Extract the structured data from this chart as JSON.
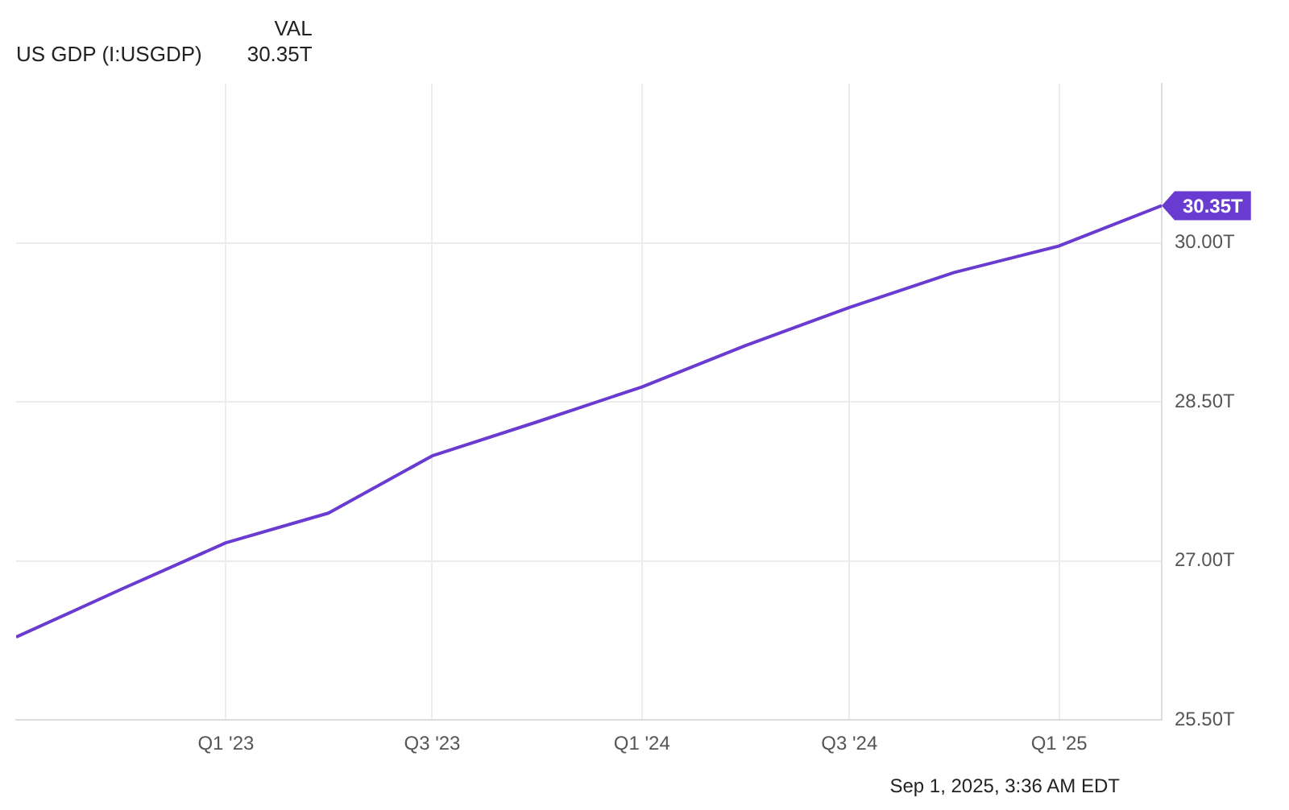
{
  "chart_data": {
    "type": "line",
    "legend_title": "VAL",
    "legend": "top left",
    "grid": true,
    "marker": "none",
    "line_style": "solid",
    "x": [
      "2022-07-01",
      "2022-10-01",
      "2023-01-01",
      "2023-04-01",
      "2023-07-01",
      "2023-10-01",
      "2024-01-01",
      "2024-04-01",
      "2024-07-01",
      "2024-10-01",
      "2025-01-01",
      "2025-04-01"
    ],
    "xlim": [
      "2022-07-01",
      "2025-04-01"
    ],
    "xticks": [
      {
        "value": "2023-01-01",
        "label": "Q1 '23"
      },
      {
        "value": "2023-07-01",
        "label": "Q3 '23"
      },
      {
        "value": "2024-01-01",
        "label": "Q1 '24"
      },
      {
        "value": "2024-07-01",
        "label": "Q3 '24"
      },
      {
        "value": "2025-01-01",
        "label": "Q1 '25"
      }
    ],
    "ylim": [
      25.5,
      31.5
    ],
    "yticks": [
      {
        "value": 25.5,
        "label": "25.50T"
      },
      {
        "value": 27,
        "label": "27.00T"
      },
      {
        "value": 28.5,
        "label": "28.50T"
      },
      {
        "value": 30,
        "label": "30.00T"
      }
    ],
    "series": [
      {
        "name": "US GDP (I:USGDP)",
        "color": "#6a3bd0",
        "values": [
          26.28,
          26.73,
          27.17,
          27.45,
          27.99,
          28.31,
          28.64,
          29.03,
          29.39,
          29.72,
          29.97,
          30.35
        ],
        "value_labels": [
          null,
          null,
          null,
          null,
          null,
          null,
          null,
          null,
          null,
          null,
          null,
          "30.35T"
        ]
      }
    ],
    "annotations": [
      "Sep 1, 2025, 3:36 AM EDT"
    ]
  }
}
